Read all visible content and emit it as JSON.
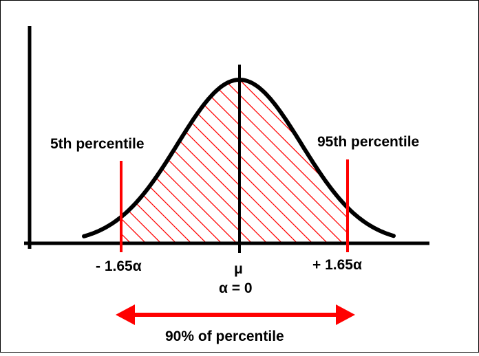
{
  "labels": {
    "left_percentile": "5th percentile",
    "right_percentile": "95th percentile",
    "left_tick": "- 1.65α",
    "right_tick": "+ 1.65α",
    "mean_symbol": "μ",
    "alpha_eq": "α = 0",
    "range_label": "90% of percentile"
  },
  "colors": {
    "axis": "#000000",
    "curve": "#000000",
    "marker": "#ff0000",
    "hatch": "#ff0000",
    "arrow": "#ff0000"
  },
  "chart_data": {
    "type": "diagram",
    "distribution": "normal",
    "markers": [
      {
        "label": "- 1.65α",
        "z": -1.65,
        "percentile": 5
      },
      {
        "label": "+ 1.65α",
        "z": 1.65,
        "percentile": 95
      }
    ],
    "center": {
      "label": "μ",
      "z": 0
    },
    "shaded_range": {
      "from": -1.65,
      "to": 1.65,
      "label": "90% of percentile"
    }
  }
}
